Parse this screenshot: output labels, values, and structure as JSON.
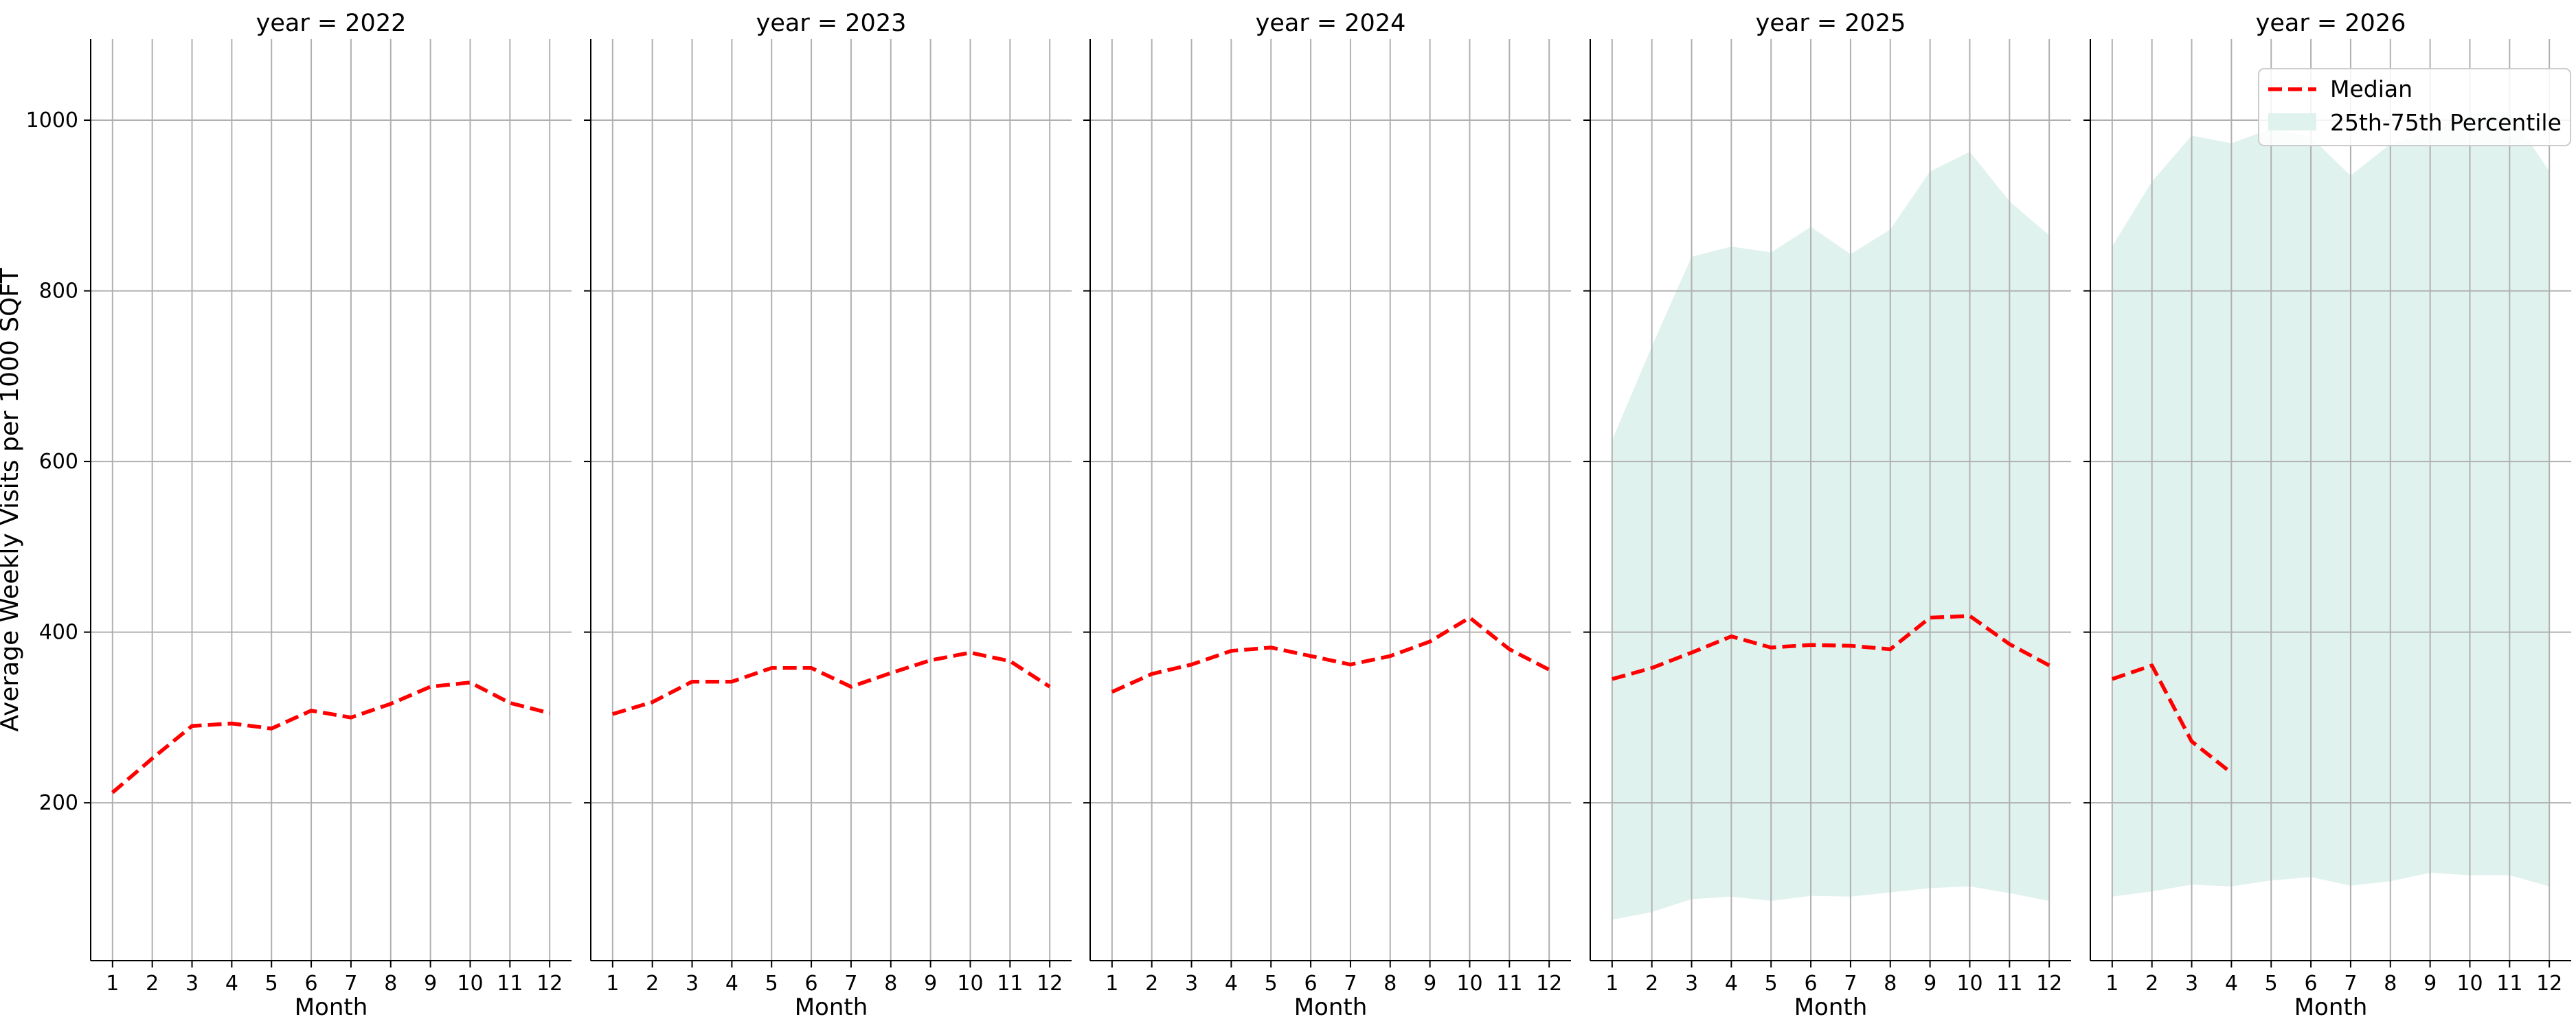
{
  "chart_data": {
    "type": "line",
    "ylabel": "Average Weekly Visits per 1000 SQFT",
    "xlabel": "Month",
    "x": [
      1,
      2,
      3,
      4,
      5,
      6,
      7,
      8,
      9,
      10,
      11,
      12
    ],
    "x_ticks": [
      "1",
      "2",
      "3",
      "4",
      "5",
      "6",
      "7",
      "8",
      "9",
      "10",
      "11",
      "12"
    ],
    "y_ticks": [
      200,
      400,
      600,
      800,
      1000
    ],
    "ylim": [
      15,
      1095
    ],
    "xlim": [
      0.45,
      12.55
    ],
    "grid": true,
    "legend": {
      "placement": "top-right",
      "entries": [
        {
          "label": "Median",
          "color": "#ff0000",
          "style": "dashed-line"
        },
        {
          "label": "25th-75th Percentile",
          "color": "#e0f2ed",
          "style": "band"
        }
      ]
    },
    "panels": [
      {
        "title": "year = 2022",
        "median": [
          212,
          252,
          290,
          293,
          287,
          308,
          300,
          316,
          336,
          341,
          317,
          305
        ],
        "p25": null,
        "p75": null
      },
      {
        "title": "year = 2023",
        "median": [
          304,
          318,
          342,
          342,
          358,
          358,
          336,
          352,
          367,
          376,
          366,
          336
        ],
        "p25": null,
        "p75": null
      },
      {
        "title": "year = 2024",
        "median": [
          330,
          351,
          362,
          378,
          382,
          372,
          362,
          372,
          389,
          417,
          380,
          356
        ],
        "p25": null,
        "p75": null
      },
      {
        "title": "year = 2025",
        "median": [
          345,
          358,
          376,
          395,
          382,
          385,
          384,
          380,
          417,
          419,
          386,
          361
        ],
        "p25": [
          63,
          72,
          87,
          90,
          85,
          91,
          90,
          95,
          100,
          102,
          94,
          85
        ],
        "p75": [
          625,
          735,
          840,
          852,
          845,
          875,
          843,
          872,
          940,
          963,
          905,
          865
        ]
      },
      {
        "title": "year = 2026",
        "median": [
          345,
          361,
          272,
          235,
          null,
          null,
          null,
          null,
          null,
          null,
          null,
          null
        ],
        "p25": [
          90,
          96,
          104,
          102,
          109,
          113,
          103,
          108,
          118,
          115,
          115,
          102
        ],
        "p75": [
          852,
          928,
          982,
          973,
          990,
          980,
          935,
          972,
          988,
          1008,
          1010,
          940
        ]
      }
    ]
  }
}
